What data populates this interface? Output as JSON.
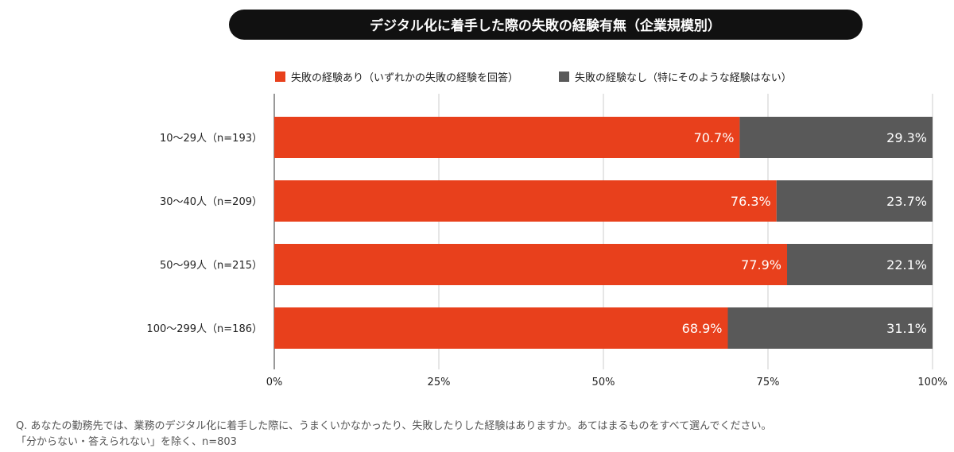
{
  "chart_data": {
    "type": "bar",
    "stacked": true,
    "orientation": "horizontal",
    "title": "デジタル化に着手した際の失敗の経験有無（企業規模別）",
    "categories": [
      "10〜29人（n=193）",
      "30〜40人（n=209）",
      "50〜99人（n=215）",
      "100〜299人（n=186）"
    ],
    "series": [
      {
        "name": "失敗の経験あり（いずれかの失敗の経験を回答）",
        "color": "#e8401c",
        "values": [
          70.7,
          76.3,
          77.9,
          68.9
        ]
      },
      {
        "name": "失敗の経験なし（特にそのような経験はない）",
        "color": "#595959",
        "values": [
          29.3,
          23.7,
          22.1,
          31.1
        ]
      }
    ],
    "xlim": [
      0,
      100
    ],
    "xticks": [
      "0%",
      "25%",
      "50%",
      "75%",
      "100%"
    ],
    "grid": true,
    "legend": "top",
    "notes": [
      "Q. あなたの勤務先では、業務のデジタル化に着手した際に、うまくいかなかったり、失敗したりした経験はありますか。あてはまるものをすべて選んでください。",
      "「分からない・答えられない」を除く、n=803"
    ]
  }
}
